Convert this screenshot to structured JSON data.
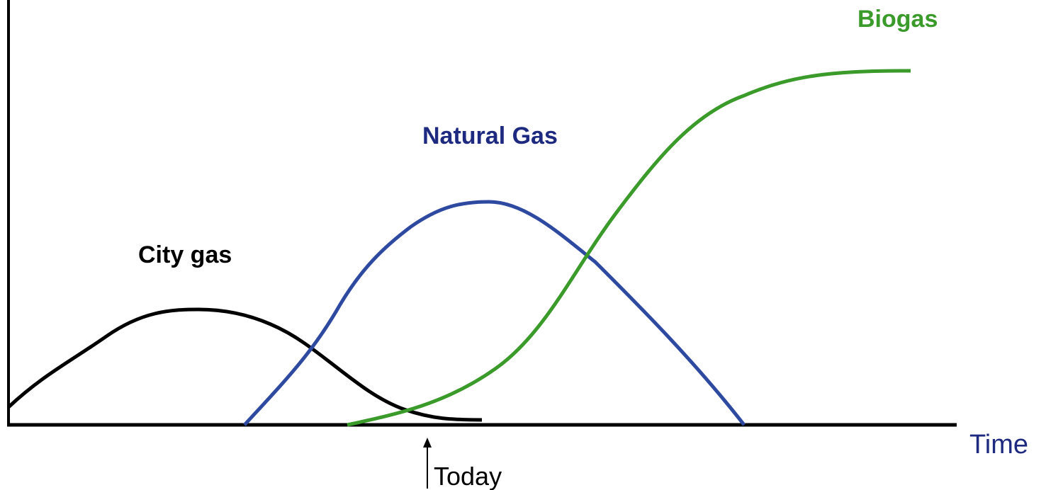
{
  "labels": {
    "city_gas": "City gas",
    "natural_gas": "Natural Gas",
    "biogas": "Biogas"
  },
  "axis": {
    "x_label": "Time",
    "marker": "Today"
  }
}
